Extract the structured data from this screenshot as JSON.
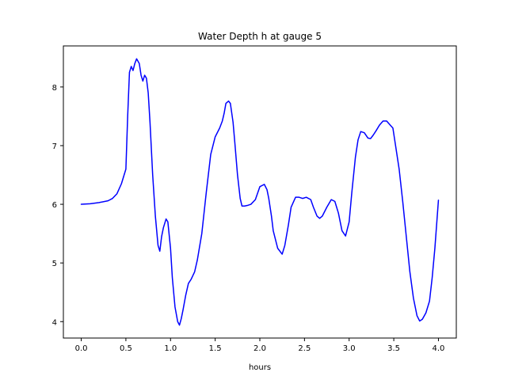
{
  "chart_data": {
    "type": "line",
    "title": "Water Depth h at gauge 5",
    "xlabel": "hours",
    "ylabel": "",
    "xlim": [
      -0.2,
      4.2
    ],
    "ylim": [
      3.72,
      8.7
    ],
    "xticks": [
      0.0,
      0.5,
      1.0,
      1.5,
      2.0,
      2.5,
      3.0,
      3.5,
      4.0
    ],
    "xtick_labels": [
      "0.0",
      "0.5",
      "1.0",
      "1.5",
      "2.0",
      "2.5",
      "3.0",
      "3.5",
      "4.0"
    ],
    "yticks": [
      4,
      5,
      6,
      7,
      8
    ],
    "ytick_labels": [
      "4",
      "5",
      "6",
      "7",
      "8"
    ],
    "grid": false,
    "series": [
      {
        "color": "#0000ff",
        "x": [
          0.0,
          0.1,
          0.2,
          0.3,
          0.35,
          0.4,
          0.45,
          0.5,
          0.52,
          0.54,
          0.56,
          0.58,
          0.6,
          0.62,
          0.65,
          0.67,
          0.69,
          0.71,
          0.73,
          0.75,
          0.77,
          0.8,
          0.83,
          0.86,
          0.88,
          0.9,
          0.92,
          0.95,
          0.97,
          1.0,
          1.02,
          1.05,
          1.08,
          1.1,
          1.12,
          1.14,
          1.17,
          1.2,
          1.23,
          1.27,
          1.3,
          1.35,
          1.4,
          1.45,
          1.5,
          1.55,
          1.58,
          1.6,
          1.62,
          1.65,
          1.67,
          1.7,
          1.72,
          1.75,
          1.78,
          1.8,
          1.83,
          1.86,
          1.9,
          1.95,
          2.0,
          2.05,
          2.08,
          2.1,
          2.13,
          2.15,
          2.2,
          2.25,
          2.28,
          2.32,
          2.35,
          2.4,
          2.44,
          2.48,
          2.52,
          2.57,
          2.6,
          2.64,
          2.67,
          2.7,
          2.75,
          2.8,
          2.84,
          2.88,
          2.92,
          2.96,
          3.0,
          3.03,
          3.07,
          3.1,
          3.13,
          3.17,
          3.21,
          3.24,
          3.27,
          3.3,
          3.34,
          3.38,
          3.42,
          3.46,
          3.49,
          3.52,
          3.56,
          3.6,
          3.64,
          3.68,
          3.72,
          3.76,
          3.79,
          3.82,
          3.86,
          3.9,
          3.93,
          3.96,
          4.0
        ],
        "y": [
          6.0,
          6.01,
          6.03,
          6.06,
          6.1,
          6.18,
          6.35,
          6.6,
          7.5,
          8.25,
          8.35,
          8.28,
          8.4,
          8.48,
          8.4,
          8.2,
          8.1,
          8.2,
          8.15,
          7.9,
          7.4,
          6.5,
          5.8,
          5.3,
          5.2,
          5.45,
          5.6,
          5.75,
          5.7,
          5.25,
          4.75,
          4.25,
          4.0,
          3.94,
          4.05,
          4.2,
          4.45,
          4.65,
          4.72,
          4.85,
          5.05,
          5.5,
          6.2,
          6.85,
          7.15,
          7.3,
          7.42,
          7.55,
          7.72,
          7.76,
          7.72,
          7.4,
          7.05,
          6.5,
          6.1,
          5.97,
          5.97,
          5.98,
          6.0,
          6.08,
          6.3,
          6.34,
          6.25,
          6.1,
          5.8,
          5.55,
          5.25,
          5.15,
          5.3,
          5.65,
          5.95,
          6.12,
          6.12,
          6.1,
          6.12,
          6.08,
          5.95,
          5.8,
          5.76,
          5.8,
          5.95,
          6.08,
          6.05,
          5.85,
          5.55,
          5.46,
          5.7,
          6.2,
          6.8,
          7.1,
          7.24,
          7.22,
          7.13,
          7.12,
          7.18,
          7.25,
          7.35,
          7.42,
          7.42,
          7.35,
          7.3,
          7.0,
          6.6,
          6.05,
          5.45,
          4.85,
          4.4,
          4.1,
          4.01,
          4.04,
          4.15,
          4.35,
          4.75,
          5.25,
          6.07
        ]
      }
    ]
  }
}
